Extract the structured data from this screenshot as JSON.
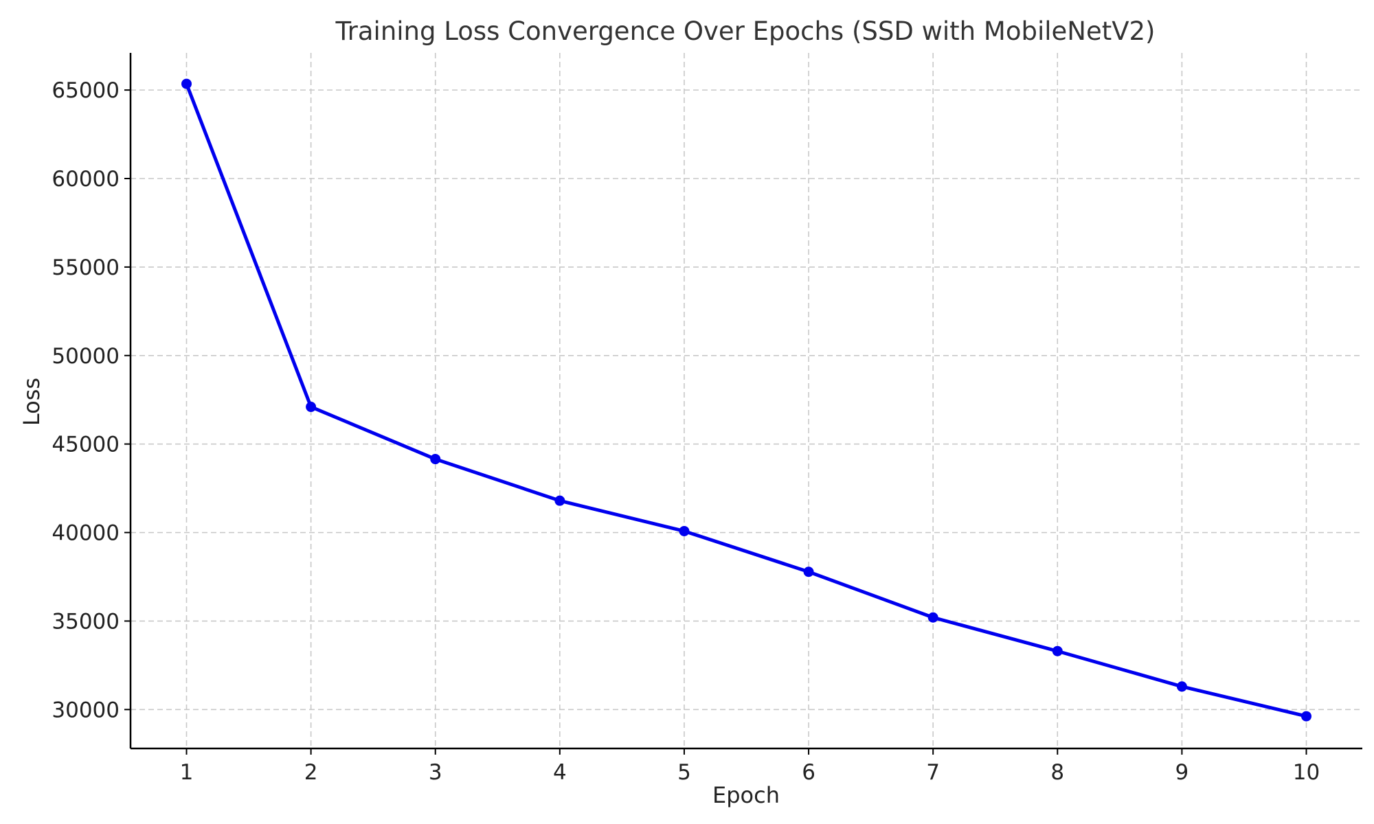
{
  "chart_data": {
    "type": "line",
    "title": "Training Loss Convergence Over Epochs (SSD with MobileNetV2)",
    "xlabel": "Epoch",
    "ylabel": "Loss",
    "x": [
      1,
      2,
      3,
      4,
      5,
      6,
      7,
      8,
      9,
      10
    ],
    "xticks": [
      "1",
      "2",
      "3",
      "4",
      "5",
      "6",
      "7",
      "8",
      "9",
      "10"
    ],
    "yticks": [
      "30000",
      "35000",
      "40000",
      "45000",
      "50000",
      "55000",
      "60000",
      "65000"
    ],
    "ytick_values": [
      30000,
      35000,
      40000,
      45000,
      50000,
      55000,
      60000,
      65000
    ],
    "xlim": [
      0.55,
      10.45
    ],
    "ylim": [
      27800,
      67100
    ],
    "series": [
      {
        "values": [
          65350,
          47100,
          44150,
          41800,
          40080,
          37780,
          35200,
          33300,
          31300,
          29620
        ],
        "color": "#0000ee",
        "marker": "circle"
      }
    ],
    "grid": true,
    "legend": "none"
  }
}
